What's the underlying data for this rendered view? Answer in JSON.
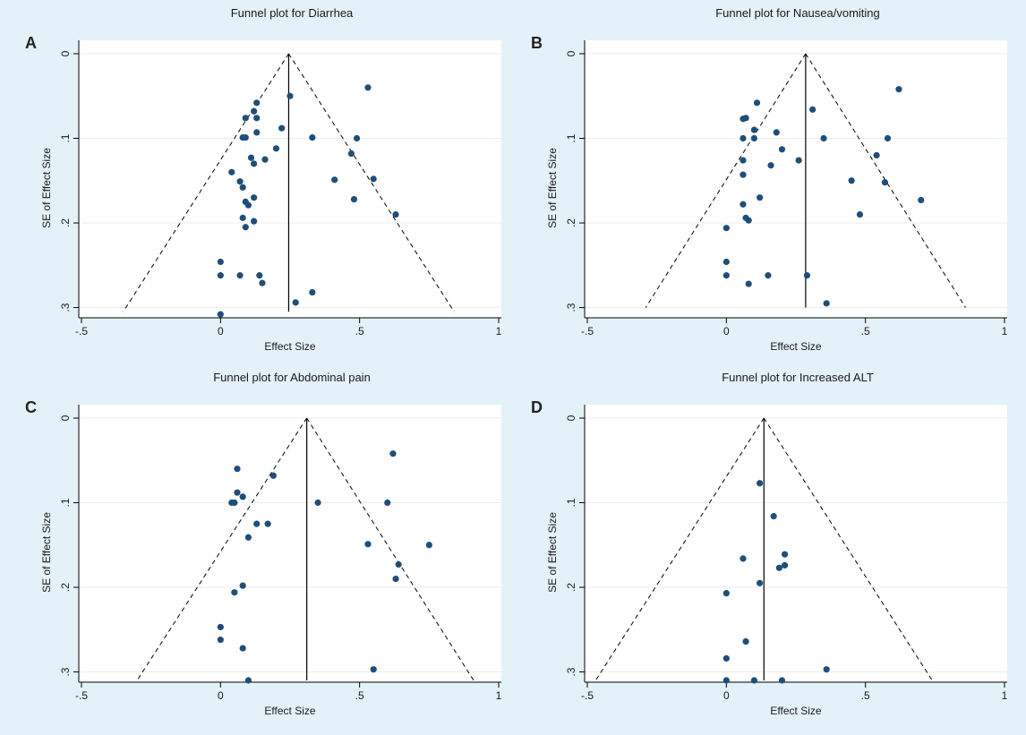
{
  "style": {
    "figure_background": "#e3f1f8",
    "plot_background": "#ffffff",
    "point_color": "#1f4e79",
    "line_color": "#000000",
    "grid_color": "#e8eef2"
  },
  "chart_data": [
    {
      "type": "scatter",
      "panel_label": "A",
      "title": "Funnel plot for Diarrhea",
      "xlabel": "Effect Size",
      "ylabel": "SE of Effect Size",
      "xlim": [
        -0.5,
        1
      ],
      "ylim": [
        0,
        0.31
      ],
      "y_reversed": true,
      "x_ticks": [
        -0.5,
        0,
        0.5,
        1
      ],
      "x_tick_labels": [
        "-.5",
        "0",
        ".5",
        "1"
      ],
      "y_ticks": [
        0,
        0.1,
        0.2,
        0.3
      ],
      "y_tick_labels": [
        "0",
        ".1",
        ".2",
        ".3"
      ],
      "grid": true,
      "pooled_effect": 0.245,
      "funnel": {
        "apex": [
          0.245,
          0
        ],
        "base_se": 0.305,
        "base_left": -0.35,
        "base_right": 0.84
      },
      "points": [
        [
          0.53,
          0.04
        ],
        [
          0.25,
          0.05
        ],
        [
          0.13,
          0.058
        ],
        [
          0.12,
          0.068
        ],
        [
          0.09,
          0.076
        ],
        [
          0.13,
          0.076
        ],
        [
          0.22,
          0.088
        ],
        [
          0.13,
          0.093
        ],
        [
          0.08,
          0.099
        ],
        [
          0.09,
          0.099
        ],
        [
          0.33,
          0.099
        ],
        [
          0.49,
          0.1
        ],
        [
          0.2,
          0.112
        ],
        [
          0.47,
          0.118
        ],
        [
          0.11,
          0.123
        ],
        [
          0.16,
          0.125
        ],
        [
          0.12,
          0.13
        ],
        [
          0.04,
          0.14
        ],
        [
          0.41,
          0.149
        ],
        [
          0.55,
          0.148
        ],
        [
          0.07,
          0.151
        ],
        [
          0.08,
          0.158
        ],
        [
          0.12,
          0.17
        ],
        [
          0.48,
          0.172
        ],
        [
          0.09,
          0.175
        ],
        [
          0.1,
          0.179
        ],
        [
          0.63,
          0.19
        ],
        [
          0.08,
          0.194
        ],
        [
          0.12,
          0.198
        ],
        [
          0.09,
          0.205
        ],
        [
          0.0,
          0.246
        ],
        [
          0.0,
          0.262
        ],
        [
          0.07,
          0.262
        ],
        [
          0.14,
          0.262
        ],
        [
          0.15,
          0.271
        ],
        [
          0.33,
          0.282
        ],
        [
          0.27,
          0.294
        ],
        [
          0.0,
          0.308
        ]
      ]
    },
    {
      "type": "scatter",
      "panel_label": "B",
      "title": "Funnel plot for Nausea/vomiting",
      "xlabel": "Effect Size",
      "ylabel": "SE of Effect Size",
      "xlim": [
        -0.5,
        1
      ],
      "ylim": [
        0,
        0.31
      ],
      "y_reversed": true,
      "x_ticks": [
        -0.5,
        0,
        0.5,
        1
      ],
      "x_tick_labels": [
        "-.5",
        "0",
        ".5",
        "1"
      ],
      "y_ticks": [
        0,
        0.1,
        0.2,
        0.3
      ],
      "y_tick_labels": [
        "0",
        ".1",
        ".2",
        ".3"
      ],
      "grid": true,
      "pooled_effect": 0.285,
      "funnel": {
        "apex": [
          0.285,
          0
        ],
        "base_se": 0.3,
        "base_left": -0.29,
        "base_right": 0.86
      },
      "points": [
        [
          0.62,
          0.042
        ],
        [
          0.11,
          0.058
        ],
        [
          0.31,
          0.066
        ],
        [
          0.06,
          0.077
        ],
        [
          0.07,
          0.076
        ],
        [
          0.1,
          0.09
        ],
        [
          0.18,
          0.093
        ],
        [
          0.06,
          0.1
        ],
        [
          0.1,
          0.1
        ],
        [
          0.35,
          0.1
        ],
        [
          0.58,
          0.1
        ],
        [
          0.2,
          0.113
        ],
        [
          0.54,
          0.12
        ],
        [
          0.06,
          0.126
        ],
        [
          0.26,
          0.126
        ],
        [
          0.16,
          0.132
        ],
        [
          0.06,
          0.143
        ],
        [
          0.45,
          0.15
        ],
        [
          0.57,
          0.152
        ],
        [
          0.12,
          0.17
        ],
        [
          0.7,
          0.173
        ],
        [
          0.06,
          0.178
        ],
        [
          0.07,
          0.194
        ],
        [
          0.08,
          0.197
        ],
        [
          0.48,
          0.19
        ],
        [
          0.0,
          0.206
        ],
        [
          0.0,
          0.246
        ],
        [
          0.0,
          0.262
        ],
        [
          0.15,
          0.262
        ],
        [
          0.29,
          0.262
        ],
        [
          0.08,
          0.272
        ],
        [
          0.36,
          0.295
        ]
      ]
    },
    {
      "type": "scatter",
      "panel_label": "C",
      "title": "Funnel plot for Abdominal pain",
      "xlabel": "Effect Size",
      "ylabel": "SE of Effect Size",
      "xlim": [
        -0.5,
        1
      ],
      "ylim": [
        0,
        0.31
      ],
      "y_reversed": true,
      "x_ticks": [
        -0.5,
        0,
        0.5,
        1
      ],
      "x_tick_labels": [
        "-.5",
        "0",
        ".5",
        "1"
      ],
      "y_ticks": [
        0,
        0.1,
        0.2,
        0.3
      ],
      "y_tick_labels": [
        "0",
        ".1",
        ".2",
        ".3"
      ],
      "grid": true,
      "pooled_effect": 0.31,
      "funnel": {
        "apex": [
          0.31,
          0
        ],
        "base_se": 0.31,
        "base_left": -0.3,
        "base_right": 0.91
      },
      "points": [
        [
          0.62,
          0.042
        ],
        [
          0.06,
          0.06
        ],
        [
          0.19,
          0.068
        ],
        [
          0.06,
          0.088
        ],
        [
          0.08,
          0.093
        ],
        [
          0.04,
          0.1
        ],
        [
          0.05,
          0.1
        ],
        [
          0.35,
          0.1
        ],
        [
          0.6,
          0.1
        ],
        [
          0.13,
          0.125
        ],
        [
          0.17,
          0.125
        ],
        [
          0.1,
          0.141
        ],
        [
          0.53,
          0.149
        ],
        [
          0.75,
          0.15
        ],
        [
          0.64,
          0.173
        ],
        [
          0.63,
          0.19
        ],
        [
          0.08,
          0.198
        ],
        [
          0.05,
          0.206
        ],
        [
          0.0,
          0.247
        ],
        [
          0.0,
          0.262
        ],
        [
          0.08,
          0.272
        ],
        [
          0.55,
          0.297
        ],
        [
          0.1,
          0.31
        ]
      ]
    },
    {
      "type": "scatter",
      "panel_label": "D",
      "title": "Funnel plot for Increased ALT",
      "xlabel": "Effect Size",
      "ylabel": "SE of Effect Size",
      "xlim": [
        -0.5,
        1
      ],
      "ylim": [
        0,
        0.31
      ],
      "y_reversed": true,
      "x_ticks": [
        -0.5,
        0,
        0.5,
        1
      ],
      "x_tick_labels": [
        "-.5",
        "0",
        ".5",
        "1"
      ],
      "y_ticks": [
        0,
        0.1,
        0.2,
        0.3
      ],
      "y_tick_labels": [
        "0",
        ".1",
        ".2",
        ".3"
      ],
      "grid": true,
      "pooled_effect": 0.135,
      "funnel": {
        "apex": [
          0.135,
          0
        ],
        "base_se": 0.31,
        "base_left": -0.47,
        "base_right": 0.74
      },
      "points": [
        [
          0.12,
          0.077
        ],
        [
          0.17,
          0.116
        ],
        [
          0.21,
          0.161
        ],
        [
          0.06,
          0.166
        ],
        [
          0.19,
          0.177
        ],
        [
          0.21,
          0.174
        ],
        [
          0.12,
          0.195
        ],
        [
          0.0,
          0.207
        ],
        [
          0.07,
          0.264
        ],
        [
          0.0,
          0.284
        ],
        [
          0.36,
          0.297
        ],
        [
          0.0,
          0.31
        ],
        [
          0.1,
          0.31
        ],
        [
          0.2,
          0.31
        ]
      ]
    }
  ]
}
